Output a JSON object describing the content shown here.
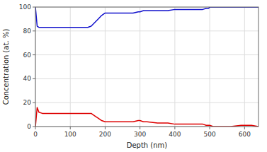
{
  "chart_data": {
    "type": "line",
    "xlabel": "Depth (nm)",
    "ylabel": "Concentration (at. %)",
    "x": [
      0,
      5,
      10,
      20,
      30,
      50,
      100,
      150,
      160,
      170,
      180,
      190,
      200,
      210,
      220,
      250,
      270,
      280,
      295,
      300,
      310,
      320,
      350,
      380,
      400,
      420,
      450,
      480,
      490,
      497,
      500,
      510,
      530,
      560,
      590,
      620,
      640
    ],
    "series": [
      {
        "color": "#1111cc",
        "values": [
          100,
          84,
          83,
          83,
          83,
          83,
          83,
          83,
          84,
          87,
          90,
          93,
          95,
          95,
          95,
          95,
          95,
          95,
          96,
          96,
          97,
          97,
          97,
          97,
          98,
          98,
          98,
          98,
          99,
          99,
          100,
          100,
          100,
          100,
          100,
          100,
          100
        ]
      },
      {
        "color": "#dd0000",
        "values": [
          0,
          16,
          12,
          11,
          11,
          11,
          11,
          11,
          11,
          9,
          7,
          5,
          4,
          4,
          4,
          4,
          4,
          4,
          5,
          5,
          4,
          4,
          3,
          3,
          2,
          2,
          2,
          2,
          1,
          1,
          1,
          0,
          0,
          0,
          1,
          1,
          0
        ]
      }
    ],
    "xlim": [
      0,
      640
    ],
    "ylim": [
      0,
      100
    ],
    "xticks": [
      0,
      100,
      200,
      300,
      400,
      500,
      600
    ],
    "yticks": [
      0,
      20,
      40,
      60,
      80,
      100
    ],
    "grid": true
  }
}
